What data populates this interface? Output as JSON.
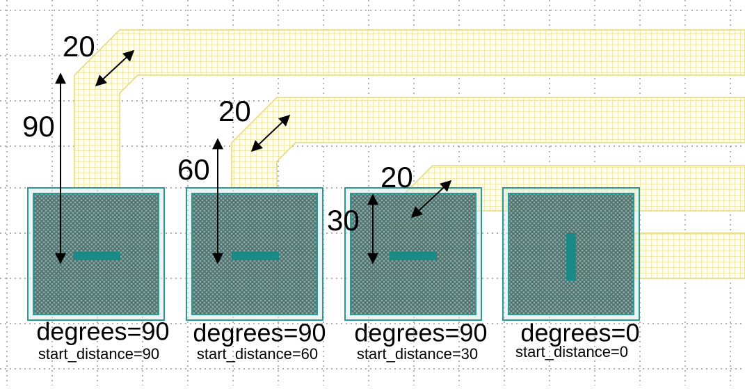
{
  "annotations": [
    {
      "width": "20",
      "distance": "90"
    },
    {
      "width": "20",
      "distance": "60"
    },
    {
      "width": "20",
      "distance": "30"
    }
  ],
  "cells": [
    {
      "degrees": "degrees=90",
      "start_distance": "start_distance=90"
    },
    {
      "degrees": "degrees=90",
      "start_distance": "start_distance=60"
    },
    {
      "degrees": "degrees=90",
      "start_distance": "start_distance=30"
    },
    {
      "degrees": "degrees=0",
      "start_distance": "start_distance=0"
    }
  ]
}
